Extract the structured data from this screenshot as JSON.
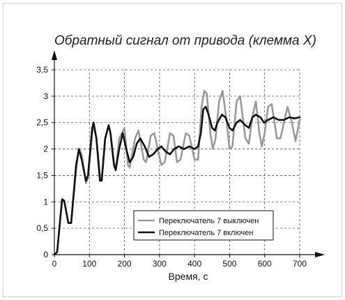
{
  "chart_data": {
    "type": "line",
    "title": "Обратный сигнал от привода (клемма Х)",
    "xlabel": "Время, с",
    "ylabel": "",
    "xlim": [
      0,
      700
    ],
    "ylim": [
      0,
      3.5
    ],
    "x_ticks": [
      "0",
      "100",
      "200",
      "300",
      "400",
      "500",
      "600",
      "700"
    ],
    "y_ticks": [
      "0",
      "0,5",
      "1",
      "1,5",
      "2",
      "2,5",
      "3",
      "3,5"
    ],
    "grid": true,
    "legend_position": "bottom-right",
    "colors": {
      "off": "#999999",
      "on": "#111111"
    },
    "series": [
      {
        "name": "Переключатель 7 выключен",
        "points": [
          [
            0,
            0
          ],
          [
            8,
            0.05
          ],
          [
            22,
            1.05
          ],
          [
            28,
            1.02
          ],
          [
            40,
            0.6
          ],
          [
            48,
            0.6
          ],
          [
            62,
            1.6
          ],
          [
            70,
            2.0
          ],
          [
            78,
            1.9
          ],
          [
            90,
            1.35
          ],
          [
            96,
            1.45
          ],
          [
            108,
            2.3
          ],
          [
            112,
            2.45
          ],
          [
            120,
            2.2
          ],
          [
            130,
            1.5
          ],
          [
            135,
            1.4
          ],
          [
            145,
            2.2
          ],
          [
            155,
            2.45
          ],
          [
            160,
            2.3
          ],
          [
            170,
            1.75
          ],
          [
            175,
            1.6
          ],
          [
            185,
            2.2
          ],
          [
            200,
            2.4
          ],
          [
            210,
            1.7
          ],
          [
            215,
            1.65
          ],
          [
            230,
            2.2
          ],
          [
            240,
            2.35
          ],
          [
            255,
            1.8
          ],
          [
            262,
            1.75
          ],
          [
            275,
            2.25
          ],
          [
            285,
            2.3
          ],
          [
            295,
            2.0
          ],
          [
            305,
            1.7
          ],
          [
            315,
            1.75
          ],
          [
            330,
            2.3
          ],
          [
            340,
            2.25
          ],
          [
            350,
            1.75
          ],
          [
            360,
            1.8
          ],
          [
            375,
            2.3
          ],
          [
            385,
            2.25
          ],
          [
            400,
            1.8
          ],
          [
            410,
            1.8
          ],
          [
            420,
            2.8
          ],
          [
            428,
            3.1
          ],
          [
            435,
            3.05
          ],
          [
            445,
            2.3
          ],
          [
            452,
            2.0
          ],
          [
            460,
            2.2
          ],
          [
            470,
            2.9
          ],
          [
            480,
            3.1
          ],
          [
            490,
            2.6
          ],
          [
            500,
            2.0
          ],
          [
            508,
            2.05
          ],
          [
            520,
            2.9
          ],
          [
            530,
            3.0
          ],
          [
            545,
            2.2
          ],
          [
            555,
            2.1
          ],
          [
            565,
            2.6
          ],
          [
            575,
            2.9
          ],
          [
            585,
            2.3
          ],
          [
            592,
            2.05
          ],
          [
            600,
            2.3
          ],
          [
            610,
            2.8
          ],
          [
            620,
            2.85
          ],
          [
            635,
            2.2
          ],
          [
            645,
            2.2
          ],
          [
            655,
            2.5
          ],
          [
            665,
            2.8
          ],
          [
            678,
            2.5
          ],
          [
            688,
            2.15
          ],
          [
            700,
            2.55
          ]
        ]
      },
      {
        "name": "Переключатель 7 включен",
        "points": [
          [
            0,
            0
          ],
          [
            8,
            0.05
          ],
          [
            22,
            1.05
          ],
          [
            28,
            1.02
          ],
          [
            40,
            0.6
          ],
          [
            48,
            0.6
          ],
          [
            62,
            1.7
          ],
          [
            70,
            2.0
          ],
          [
            78,
            1.8
          ],
          [
            90,
            1.4
          ],
          [
            96,
            1.5
          ],
          [
            108,
            2.4
          ],
          [
            112,
            2.5
          ],
          [
            120,
            2.2
          ],
          [
            130,
            1.4
          ],
          [
            135,
            1.4
          ],
          [
            145,
            2.2
          ],
          [
            155,
            2.45
          ],
          [
            160,
            2.3
          ],
          [
            170,
            1.7
          ],
          [
            175,
            1.6
          ],
          [
            185,
            2.0
          ],
          [
            195,
            2.3
          ],
          [
            205,
            2.0
          ],
          [
            215,
            1.75
          ],
          [
            225,
            1.85
          ],
          [
            235,
            2.1
          ],
          [
            245,
            2.2
          ],
          [
            258,
            2.05
          ],
          [
            270,
            1.85
          ],
          [
            282,
            1.9
          ],
          [
            295,
            2.0
          ],
          [
            305,
            2.05
          ],
          [
            318,
            1.95
          ],
          [
            330,
            1.9
          ],
          [
            342,
            2.0
          ],
          [
            355,
            2.05
          ],
          [
            370,
            2.0
          ],
          [
            385,
            2.05
          ],
          [
            400,
            2.0
          ],
          [
            410,
            2.05
          ],
          [
            418,
            2.3
          ],
          [
            425,
            2.75
          ],
          [
            432,
            2.8
          ],
          [
            440,
            2.65
          ],
          [
            450,
            2.4
          ],
          [
            458,
            2.35
          ],
          [
            465,
            2.5
          ],
          [
            478,
            2.65
          ],
          [
            488,
            2.6
          ],
          [
            500,
            2.4
          ],
          [
            508,
            2.35
          ],
          [
            520,
            2.5
          ],
          [
            530,
            2.55
          ],
          [
            545,
            2.45
          ],
          [
            555,
            2.4
          ],
          [
            565,
            2.6
          ],
          [
            575,
            2.65
          ],
          [
            588,
            2.6
          ],
          [
            598,
            2.5
          ],
          [
            610,
            2.55
          ],
          [
            625,
            2.6
          ],
          [
            640,
            2.55
          ],
          [
            655,
            2.55
          ],
          [
            670,
            2.6
          ],
          [
            685,
            2.58
          ],
          [
            700,
            2.6
          ]
        ]
      }
    ]
  }
}
